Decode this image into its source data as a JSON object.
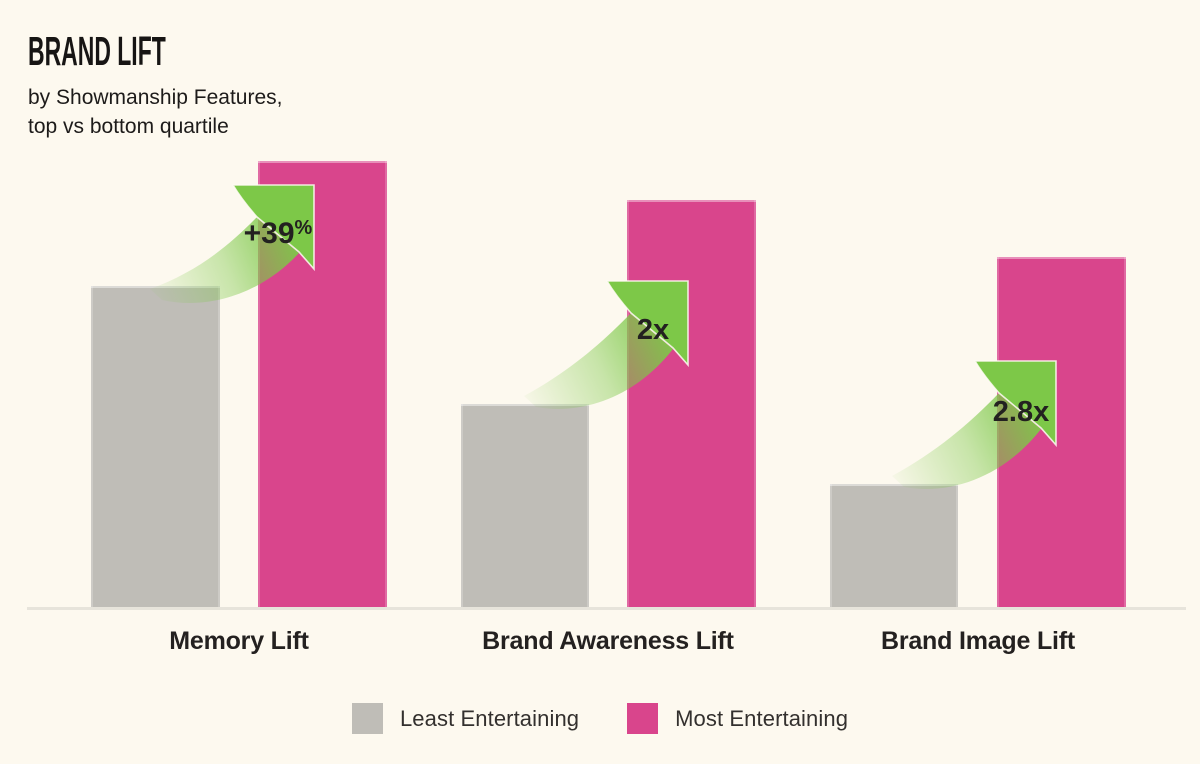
{
  "header": {
    "title": "BRAND LIFT",
    "subtitle": "by Showmanship Features,\ntop vs bottom quartile"
  },
  "chart_data": {
    "type": "bar",
    "title": "Brand Lift",
    "subtitle": "by Showmanship Features, top vs bottom quartile",
    "categories": [
      "Memory Lift",
      "Brand Awareness Lift",
      "Brand Image Lift"
    ],
    "series": [
      {
        "name": "Least Entertaining",
        "color": "#BFBDB7",
        "values": [
          100,
          63.5,
          38.5
        ]
      },
      {
        "name": "Most Entertaining",
        "color": "#D9458C",
        "values": [
          139,
          127,
          109
        ]
      }
    ],
    "value_unit": "relative lift index (least-entertaining Memory Lift = 100)",
    "ylim": [
      0,
      139
    ],
    "grid": false,
    "axis_labels_shown": false,
    "legend_position": "bottom",
    "annotations": [
      {
        "category": "Memory Lift",
        "label": "+39%",
        "label_main": "+39",
        "label_sup": "%",
        "meaning": "most vs least entertaining"
      },
      {
        "category": "Brand Awareness Lift",
        "label": "2x",
        "label_main": "2x",
        "label_sup": "",
        "meaning": "most vs least entertaining"
      },
      {
        "category": "Brand Image Lift",
        "label": "2.8x",
        "label_main": "2.8x",
        "label_sup": "",
        "meaning": "most vs least entertaining"
      }
    ]
  },
  "legend": {
    "items": [
      {
        "label": "Least Entertaining",
        "color": "#BFBDB7"
      },
      {
        "label": "Most Entertaining",
        "color": "#D9458C"
      }
    ]
  },
  "colors": {
    "background": "#FDF9EF",
    "bar_least": "#BFBDB7",
    "bar_most": "#D9458C",
    "arrow_green": "#7DC848",
    "arrow_text": "#232120",
    "axis_line": "#E7E4DB",
    "title_text": "#171514"
  }
}
